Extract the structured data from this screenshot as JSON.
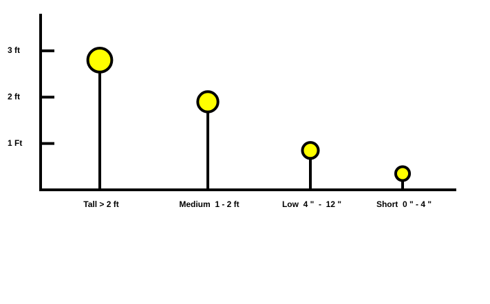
{
  "chart_data": {
    "type": "lollipop",
    "categories": [
      "Tall > 2 ft",
      "Medium  1 - 2 ft",
      "Low  4 \"  -  12 \"",
      "Short  0 \" - 4 \""
    ],
    "values": [
      2.8,
      1.9,
      0.85,
      0.35
    ],
    "color": "#ffff00",
    "ylim": [
      0,
      3.8
    ],
    "yticks": [
      {
        "value": 1,
        "label": "1 Ft"
      },
      {
        "value": 2,
        "label": "2 ft"
      },
      {
        "value": 3,
        "label": "3 ft"
      }
    ]
  }
}
